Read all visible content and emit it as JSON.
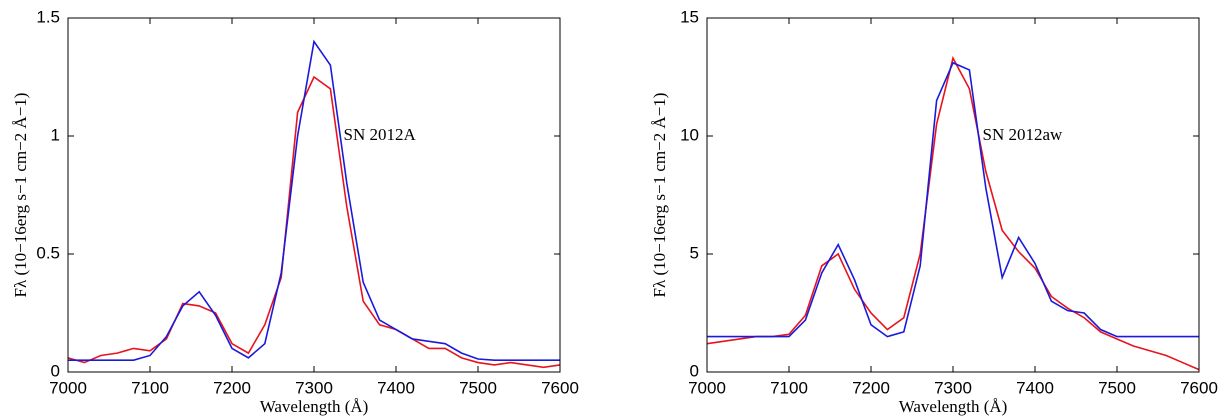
{
  "chart_data": [
    {
      "type": "line",
      "ylabel": "Fλ (10−16erg s−1 cm−2 Å−1)",
      "xlabel": "Wavelength (Å)",
      "annotation": "SN 2012A",
      "annotation_color": "#e8141c",
      "xlim": [
        7000,
        7600
      ],
      "xticks": [
        7000,
        7100,
        7200,
        7300,
        7400,
        7500,
        7600
      ],
      "ylim": [
        0,
        1.5
      ],
      "yticks": [
        0,
        0.5,
        1,
        1.5
      ],
      "x": [
        7000,
        7020,
        7040,
        7060,
        7080,
        7100,
        7120,
        7140,
        7160,
        7180,
        7200,
        7220,
        7240,
        7260,
        7280,
        7300,
        7320,
        7340,
        7360,
        7380,
        7400,
        7420,
        7440,
        7460,
        7480,
        7500,
        7520,
        7540,
        7560,
        7580,
        7600
      ],
      "series": [
        {
          "color": "#e8141c",
          "values": [
            0.06,
            0.04,
            0.07,
            0.08,
            0.1,
            0.09,
            0.14,
            0.29,
            0.28,
            0.25,
            0.12,
            0.08,
            0.2,
            0.4,
            1.1,
            1.25,
            1.2,
            0.7,
            0.3,
            0.2,
            0.18,
            0.14,
            0.1,
            0.1,
            0.06,
            0.04,
            0.03,
            0.04,
            0.03,
            0.02,
            0.03
          ]
        },
        {
          "color": "#1a1adc",
          "values": [
            0.05,
            0.05,
            0.05,
            0.05,
            0.05,
            0.07,
            0.15,
            0.28,
            0.34,
            0.24,
            0.1,
            0.06,
            0.12,
            0.42,
            1.0,
            1.4,
            1.3,
            0.8,
            0.38,
            0.22,
            0.18,
            0.14,
            0.13,
            0.12,
            0.08,
            0.055,
            0.05,
            0.05,
            0.05,
            0.05,
            0.05
          ]
        }
      ]
    },
    {
      "type": "line",
      "ylabel": "Fλ (10−16erg s−1 cm−2 Å−1)",
      "xlabel": "Wavelength (Å)",
      "annotation": "SN 2012aw",
      "annotation_color": "#e8141c",
      "xlim": [
        7000,
        7600
      ],
      "xticks": [
        7000,
        7100,
        7200,
        7300,
        7400,
        7500,
        7600
      ],
      "ylim": [
        0,
        15
      ],
      "yticks": [
        0,
        5,
        10,
        15
      ],
      "x": [
        7000,
        7020,
        7040,
        7060,
        7080,
        7100,
        7120,
        7140,
        7160,
        7180,
        7200,
        7220,
        7240,
        7260,
        7280,
        7300,
        7320,
        7340,
        7360,
        7380,
        7400,
        7420,
        7440,
        7460,
        7480,
        7500,
        7520,
        7540,
        7560,
        7580,
        7600
      ],
      "series": [
        {
          "color": "#e8141c",
          "values": [
            1.2,
            1.3,
            1.4,
            1.5,
            1.5,
            1.6,
            2.4,
            4.5,
            5.0,
            3.5,
            2.5,
            1.8,
            2.3,
            5.0,
            10.5,
            13.3,
            12.0,
            8.5,
            6.0,
            5.1,
            4.4,
            3.2,
            2.7,
            2.3,
            1.7,
            1.4,
            1.1,
            0.9,
            0.7,
            0.4,
            0.1
          ]
        },
        {
          "color": "#1a1adc",
          "values": [
            1.5,
            1.5,
            1.5,
            1.5,
            1.5,
            1.5,
            2.2,
            4.2,
            5.4,
            3.9,
            2.0,
            1.5,
            1.7,
            4.5,
            11.5,
            13.1,
            12.8,
            7.8,
            4.0,
            5.7,
            4.6,
            3.0,
            2.6,
            2.5,
            1.8,
            1.5,
            1.5,
            1.5,
            1.5,
            1.5,
            1.5
          ]
        }
      ]
    }
  ]
}
